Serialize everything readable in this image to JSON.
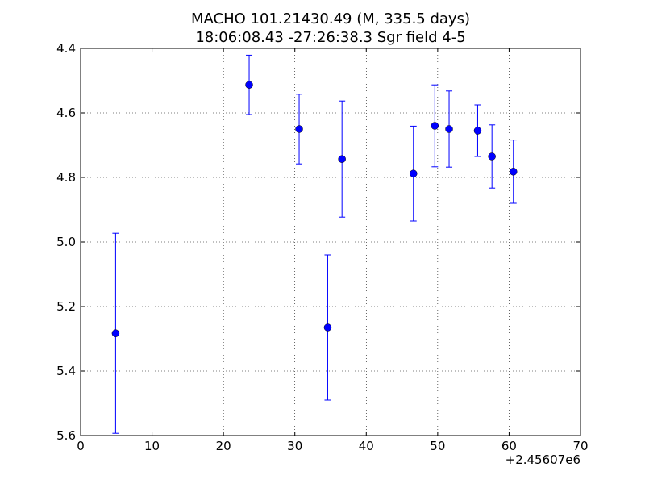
{
  "chart_data": {
    "type": "scatter",
    "title": "MACHO 101.21430.49 (M, 335.5 days)",
    "subtitle": "18:06:08.43 -27:26:38.3 Sgr field 4-5",
    "xlabel": "",
    "ylabel": "",
    "x_offset_label": "+2.45607e6",
    "xlim": [
      0,
      70
    ],
    "ylim": [
      5.6,
      4.4
    ],
    "y_inverted": true,
    "grid": true,
    "x_ticks": [
      0,
      10,
      20,
      30,
      40,
      50,
      60,
      70
    ],
    "x_tick_labels": [
      "0",
      "10",
      "20",
      "30",
      "40",
      "50",
      "60",
      "70"
    ],
    "y_ticks": [
      4.4,
      4.6,
      4.8,
      5.0,
      5.2,
      5.4,
      5.6
    ],
    "y_tick_labels": [
      "4.4",
      "4.6",
      "4.8",
      "5.0",
      "5.2",
      "5.4",
      "5.6"
    ],
    "marker_color": "#0000ff",
    "points": [
      {
        "x": 4.9,
        "y": 5.283,
        "yerr": 0.31
      },
      {
        "x": 23.6,
        "y": 4.513,
        "yerr": 0.092
      },
      {
        "x": 30.6,
        "y": 4.65,
        "yerr": 0.108
      },
      {
        "x": 34.6,
        "y": 5.265,
        "yerr": 0.225
      },
      {
        "x": 36.6,
        "y": 4.743,
        "yerr": 0.18
      },
      {
        "x": 46.6,
        "y": 4.788,
        "yerr": 0.147
      },
      {
        "x": 49.6,
        "y": 4.64,
        "yerr": 0.127
      },
      {
        "x": 51.6,
        "y": 4.65,
        "yerr": 0.118
      },
      {
        "x": 55.6,
        "y": 4.655,
        "yerr": 0.08
      },
      {
        "x": 57.6,
        "y": 4.735,
        "yerr": 0.098
      },
      {
        "x": 60.6,
        "y": 4.782,
        "yerr": 0.098
      }
    ]
  }
}
